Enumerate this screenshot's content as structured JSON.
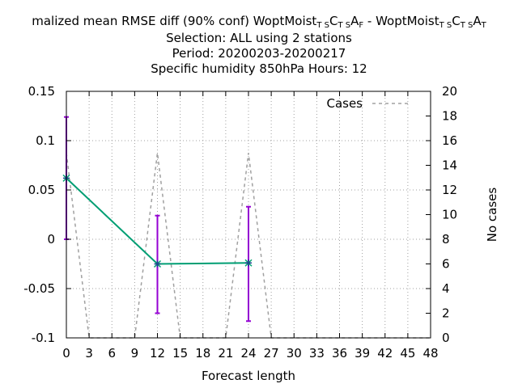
{
  "title": {
    "line1": {
      "prefix": "malized mean RMSE diff (90% conf) WoptMoist",
      "sub_a": "T S",
      "mid_a": "C",
      "sub_b": "T S",
      "mid_b": "A",
      "sub_c": "F",
      "sep": " - WoptMoist",
      "sub_d": "T S",
      "mid_c": "C",
      "sub_e": "T S",
      "mid_d": "A",
      "sub_f": "T"
    },
    "line2": "Selection: ALL using     2 stations",
    "line3": "Period: 20200203-20200217",
    "line4": "Specific humidity 850hPa   Hours:  12"
  },
  "chart_data": {
    "type": "line",
    "xlabel": "Forecast length",
    "ylabel_left": "",
    "ylabel_right": "No cases",
    "xlim": [
      0,
      48
    ],
    "ylim_left": [
      -0.1,
      0.15
    ],
    "ylim_right": [
      0,
      20
    ],
    "x_ticks": [
      "0",
      "3",
      "6",
      "9",
      "12",
      "15",
      "18",
      "21",
      "24",
      "27",
      "30",
      "33",
      "36",
      "39",
      "42",
      "45",
      "48"
    ],
    "y_ticks_left": [
      "0.15",
      "0.1",
      "0.05",
      "0",
      "-0.05",
      "-0.1"
    ],
    "y_ticks_right": [
      "20",
      "18",
      "16",
      "14",
      "12",
      "10",
      "8",
      "6",
      "4",
      "2",
      "0"
    ],
    "grid": true,
    "legend": {
      "position": "top-right",
      "entries": [
        "Cases"
      ]
    },
    "series": [
      {
        "name": "",
        "axis": "left",
        "color": "#009e73",
        "x": [
          0,
          12,
          24
        ],
        "y": [
          0.062,
          -0.025,
          -0.024
        ],
        "err_low": [
          0.0,
          -0.075,
          -0.083
        ],
        "err_high": [
          0.124,
          0.024,
          0.033
        ],
        "err_color": "#9400d3"
      },
      {
        "name": "Cases",
        "axis": "right",
        "color": "#a0a0a0",
        "dashed": true,
        "x": [
          0,
          3,
          6,
          9,
          12,
          15,
          18,
          21,
          24,
          27,
          30,
          33,
          36,
          39,
          42,
          45,
          48
        ],
        "y": [
          15,
          0,
          0,
          0,
          15,
          0,
          0,
          0,
          15,
          0,
          0,
          0,
          0,
          0,
          0,
          0,
          0
        ]
      }
    ]
  }
}
